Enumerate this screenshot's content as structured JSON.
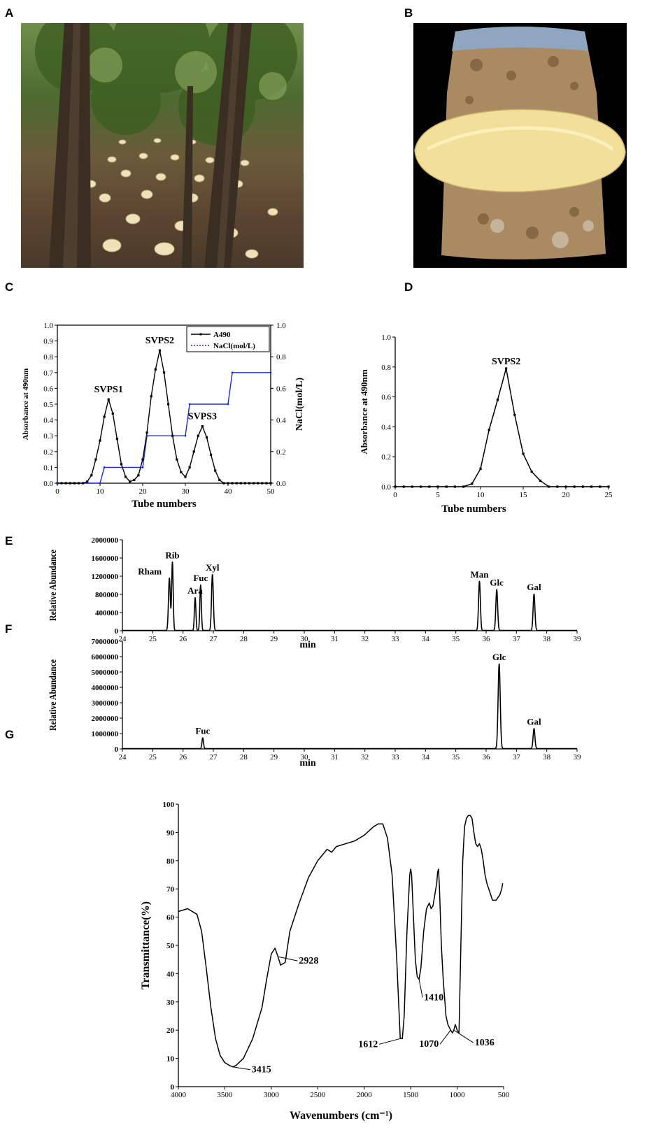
{
  "panels": {
    "A": "A",
    "B": "B",
    "C": "C",
    "D": "D",
    "E": "E",
    "F": "F",
    "G": "G"
  },
  "chart_data": [
    {
      "panel": "C",
      "type": "line",
      "xlabel": "Tube numbers",
      "ylabel": "Absorbance at 490nm",
      "y2label": "NaCl(mol/L)",
      "xlim": [
        0,
        50
      ],
      "ylim": [
        0,
        1.0
      ],
      "y2lim": [
        0,
        1.0
      ],
      "xticks": [
        0,
        10,
        20,
        30,
        40,
        50
      ],
      "yticks": [
        0.0,
        0.1,
        0.2,
        0.3,
        0.4,
        0.5,
        0.6,
        0.7,
        0.8,
        0.9,
        1.0
      ],
      "y2ticks": [
        0.0,
        0.2,
        0.4,
        0.6,
        0.8,
        1.0
      ],
      "legend_position": "top-right",
      "series": [
        {
          "name": "A490",
          "color": "#000000",
          "x": [
            0,
            1,
            2,
            3,
            4,
            5,
            6,
            7,
            8,
            9,
            10,
            11,
            12,
            13,
            14,
            15,
            16,
            17,
            18,
            19,
            20,
            21,
            22,
            23,
            24,
            25,
            26,
            27,
            28,
            29,
            30,
            31,
            32,
            33,
            34,
            35,
            36,
            37,
            38,
            39,
            40,
            41,
            42,
            43,
            44,
            45,
            46,
            47,
            48,
            49,
            50
          ],
          "values": [
            0,
            0,
            0,
            0,
            0,
            0,
            0,
            0.01,
            0.05,
            0.15,
            0.27,
            0.42,
            0.53,
            0.44,
            0.28,
            0.12,
            0.04,
            0.01,
            0.02,
            0.05,
            0.15,
            0.32,
            0.55,
            0.72,
            0.84,
            0.7,
            0.5,
            0.3,
            0.15,
            0.07,
            0.04,
            0.1,
            0.2,
            0.3,
            0.36,
            0.29,
            0.18,
            0.08,
            0.02,
            0,
            0,
            0,
            0,
            0,
            0,
            0,
            0,
            0,
            0,
            0,
            0
          ]
        },
        {
          "name": "NaCl(mol/L)",
          "color": "#1a2fd1",
          "axis": "right",
          "x": [
            0,
            10,
            11,
            20,
            21,
            30,
            31,
            40,
            41,
            50
          ],
          "values": [
            0,
            0,
            0.1,
            0.1,
            0.3,
            0.3,
            0.5,
            0.5,
            0.7,
            0.7
          ]
        }
      ],
      "annotations": [
        {
          "text": "SVPS1",
          "x": 12,
          "y": 0.53
        },
        {
          "text": "SVPS2",
          "x": 24,
          "y": 0.84
        },
        {
          "text": "SVPS3",
          "x": 34,
          "y": 0.36
        }
      ]
    },
    {
      "panel": "D",
      "type": "line",
      "xlabel": "Tube numbers",
      "ylabel": "Absorbance at 490nm",
      "xlim": [
        0,
        25
      ],
      "ylim": [
        0,
        1.0
      ],
      "xticks": [
        0,
        5,
        10,
        15,
        20,
        25
      ],
      "yticks": [
        0.0,
        0.2,
        0.4,
        0.6,
        0.8,
        1.0
      ],
      "series": [
        {
          "name": "",
          "color": "#000000",
          "x": [
            0,
            1,
            2,
            3,
            4,
            5,
            6,
            7,
            8,
            9,
            10,
            11,
            12,
            13,
            14,
            15,
            16,
            17,
            18,
            19,
            20,
            21,
            22,
            23,
            24,
            25
          ],
          "values": [
            0,
            0,
            0,
            0,
            0,
            0,
            0,
            0,
            0,
            0.02,
            0.12,
            0.38,
            0.58,
            0.79,
            0.48,
            0.22,
            0.1,
            0.04,
            0,
            0,
            0,
            0,
            0,
            0,
            0,
            0
          ]
        }
      ],
      "annotations": [
        {
          "text": "SVPS2",
          "x": 13,
          "y": 0.79
        }
      ]
    },
    {
      "panel": "E",
      "type": "line",
      "xlabel": "min",
      "ylabel": "Relative Abundance",
      "xlim": [
        24,
        39
      ],
      "ylim": [
        0,
        2000000
      ],
      "xticks": [
        24,
        25,
        26,
        27,
        28,
        29,
        30,
        31,
        32,
        33,
        34,
        35,
        36,
        37,
        38,
        39
      ],
      "yticks": [
        0,
        400000,
        800000,
        1200000,
        1600000,
        2000000
      ],
      "ytick_labels": [
        "0",
        "400000",
        "800000",
        "1200000",
        "1600000",
        "2000000"
      ],
      "peaks": [
        {
          "label": "Rham",
          "x": 25.55,
          "y": 1150000,
          "width": 0.06
        },
        {
          "label": "Rib",
          "x": 25.65,
          "y": 1500000,
          "width": 0.05
        },
        {
          "label": "Ara",
          "x": 26.4,
          "y": 720000,
          "width": 0.05
        },
        {
          "label": "Fuc",
          "x": 26.58,
          "y": 1000000,
          "width": 0.05
        },
        {
          "label": "Xyl",
          "x": 26.97,
          "y": 1230000,
          "width": 0.06
        },
        {
          "label": "Man",
          "x": 35.78,
          "y": 1080000,
          "width": 0.06
        },
        {
          "label": "Glc",
          "x": 36.35,
          "y": 900000,
          "width": 0.06
        },
        {
          "label": "Gal",
          "x": 37.58,
          "y": 800000,
          "width": 0.06
        }
      ]
    },
    {
      "panel": "F",
      "type": "line",
      "xlabel": "min",
      "ylabel": "Relative Abundance",
      "xlim": [
        24,
        39
      ],
      "ylim": [
        0,
        7000000
      ],
      "xticks": [
        24,
        25,
        26,
        27,
        28,
        29,
        30,
        31,
        32,
        33,
        34,
        35,
        36,
        37,
        38,
        39
      ],
      "yticks": [
        0,
        1000000,
        2000000,
        3000000,
        4000000,
        5000000,
        6000000,
        7000000
      ],
      "ytick_labels": [
        "0",
        "1000000",
        "2000000",
        "3000000",
        "4000000",
        "5000000",
        "6000000",
        "7000000"
      ],
      "peaks": [
        {
          "label": "Fuc",
          "x": 26.65,
          "y": 700000,
          "width": 0.05
        },
        {
          "label": "Glc",
          "x": 36.43,
          "y": 5500000,
          "width": 0.07
        },
        {
          "label": "Gal",
          "x": 37.58,
          "y": 1300000,
          "width": 0.06
        }
      ]
    },
    {
      "panel": "G",
      "type": "line",
      "xlabel": "Wavenumbers (cm⁻¹)",
      "ylabel": "Transmittance(%)",
      "xlim": [
        4000,
        500
      ],
      "ylim": [
        0,
        100
      ],
      "xticks": [
        4000,
        3500,
        3000,
        2500,
        2000,
        1500,
        1000,
        500
      ],
      "yticks": [
        0,
        10,
        20,
        30,
        40,
        50,
        60,
        70,
        80,
        90,
        100
      ],
      "series": [
        {
          "name": "",
          "color": "#000000",
          "x": [
            4000,
            3900,
            3800,
            3750,
            3700,
            3650,
            3600,
            3550,
            3500,
            3450,
            3415,
            3380,
            3300,
            3200,
            3100,
            3050,
            3000,
            2960,
            2928,
            2900,
            2850,
            2800,
            2700,
            2600,
            2500,
            2450,
            2400,
            2350,
            2300,
            2200,
            2100,
            2000,
            1900,
            1850,
            1800,
            1750,
            1700,
            1650,
            1630,
            1612,
            1590,
            1570,
            1540,
            1510,
            1500,
            1490,
            1470,
            1450,
            1430,
            1410,
            1390,
            1360,
            1330,
            1300,
            1280,
            1260,
            1240,
            1220,
            1210,
            1200,
            1190,
            1170,
            1150,
            1120,
            1100,
            1070,
            1050,
            1036,
            1020,
            1000,
            980,
            960,
            940,
            920,
            900,
            880,
            860,
            840,
            820,
            800,
            780,
            760,
            740,
            720,
            700,
            680,
            660,
            640,
            620,
            600,
            580,
            560,
            540,
            520,
            510
          ],
          "values": [
            62,
            63,
            61,
            55,
            42,
            28,
            17,
            11,
            8.5,
            7.5,
            7,
            7.5,
            10,
            17,
            28,
            38,
            47,
            49,
            46,
            43,
            44,
            55,
            65,
            74,
            80,
            82,
            84,
            83,
            85,
            86,
            87,
            89,
            92,
            93,
            93,
            88,
            75,
            45,
            30,
            17,
            17,
            25,
            55,
            75,
            77,
            75,
            60,
            45,
            39,
            38,
            42,
            55,
            63,
            65,
            63,
            64,
            68,
            72,
            76,
            77,
            70,
            50,
            38,
            25,
            22,
            20,
            19,
            20,
            22,
            20,
            19,
            50,
            80,
            92,
            95,
            96,
            96,
            95,
            90,
            86,
            85,
            86,
            84,
            80,
            75,
            72,
            70,
            68,
            66,
            66,
            66,
            67,
            68,
            70,
            72
          ]
        }
      ],
      "annotations": [
        {
          "text": "3415",
          "x": 3415,
          "y": 7
        },
        {
          "text": "2928",
          "x": 2928,
          "y": 46
        },
        {
          "text": "1612",
          "x": 1612,
          "y": 17
        },
        {
          "text": "1410",
          "x": 1410,
          "y": 38
        },
        {
          "text": "1070",
          "x": 1070,
          "y": 20
        },
        {
          "text": "1036",
          "x": 1036,
          "y": 20
        }
      ]
    }
  ]
}
